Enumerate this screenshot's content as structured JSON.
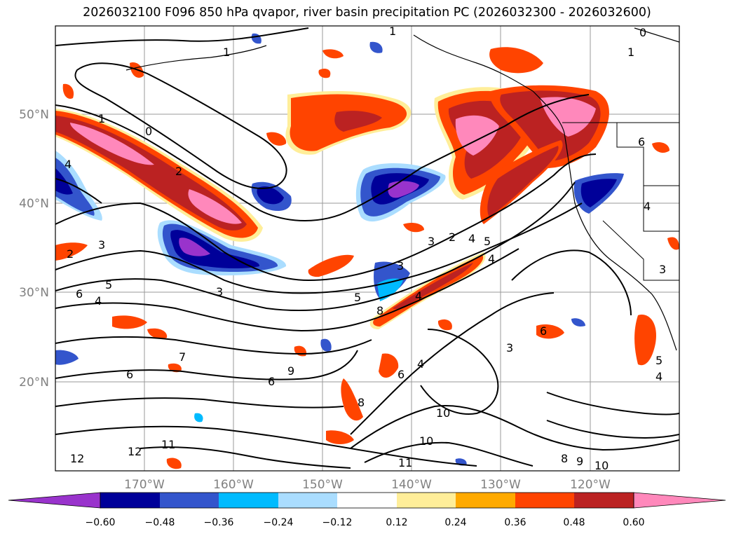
{
  "title": "2026032100 F096 850 hPa qvapor, river basin precipitation PC (2026032300 - 2026032600)",
  "lat_labels": [
    "50°N",
    "40°N",
    "30°N",
    "20°N"
  ],
  "lon_labels": [
    "170°W",
    "160°W",
    "150°W",
    "140°W",
    "130°W",
    "120°W"
  ],
  "colorbar": {
    "colors": [
      "#9933cc",
      "#000099",
      "#3355cc",
      "#00bbff",
      "#aaddff",
      "#ffffff",
      "#ffee99",
      "#ffaa00",
      "#ff4400",
      "#bb2222",
      "#ff88bb"
    ],
    "ticks": [
      "−0.60",
      "−0.48",
      "−0.36",
      "−0.24",
      "−0.12",
      "0.12",
      "0.24",
      "0.36",
      "0.48",
      "0.60"
    ]
  },
  "contour_labels": [
    "1",
    "0",
    "1",
    "1",
    "0",
    "1",
    "4",
    "2",
    "2",
    "3",
    "3",
    "2",
    "4",
    "5",
    "6",
    "5",
    "4",
    "5",
    "3",
    "4",
    "8",
    "6",
    "3",
    "4",
    "7",
    "6",
    "6",
    "8",
    "6",
    "6",
    "4",
    "9",
    "3",
    "10",
    "10",
    "11",
    "12",
    "12",
    "11",
    "8",
    "9",
    "10",
    "4",
    "5",
    "4",
    "3"
  ],
  "colors": {
    "positive": "#ff4400",
    "negative": "#3355cc",
    "contour": "#000000",
    "grid": "#999999"
  }
}
